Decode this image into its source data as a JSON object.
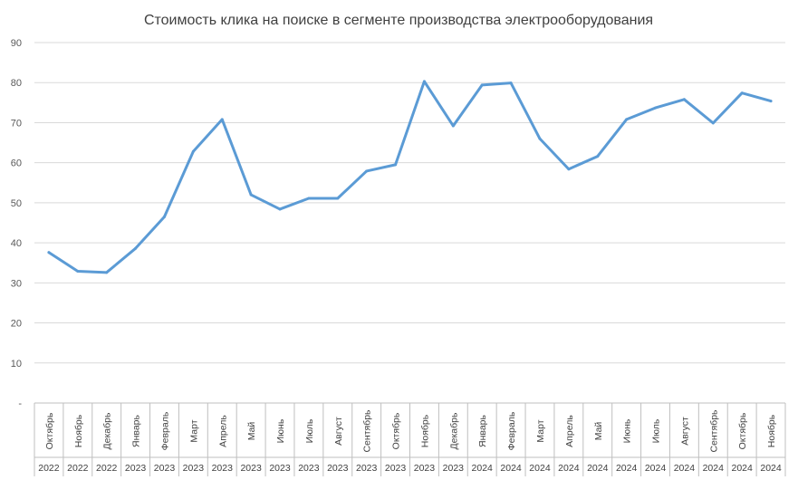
{
  "chart_data": {
    "type": "line",
    "title": "Стоимость клика на поиске  в сегменте производства электрооборудования",
    "xlabel": "",
    "ylabel": "",
    "ylim": [
      0,
      90
    ],
    "yticks": [
      "-",
      "10",
      "20",
      "30",
      "40",
      "50",
      "60",
      "70",
      "80",
      "90"
    ],
    "grid": true,
    "legend": "none",
    "colors": {
      "line": "#5b9bd5",
      "grid": "#d9d9d9",
      "text": "#595959"
    },
    "categories": [
      {
        "month": "Октябрь",
        "year": "2022"
      },
      {
        "month": "Ноябрь",
        "year": "2022"
      },
      {
        "month": "Декабрь",
        "year": "2022"
      },
      {
        "month": "Январь",
        "year": "2023"
      },
      {
        "month": "Февраль",
        "year": "2023"
      },
      {
        "month": "Март",
        "year": "2023"
      },
      {
        "month": "Апрель",
        "year": "2023"
      },
      {
        "month": "Май",
        "year": "2023"
      },
      {
        "month": "Июнь",
        "year": "2023"
      },
      {
        "month": "Июль",
        "year": "2023"
      },
      {
        "month": "Август",
        "year": "2023"
      },
      {
        "month": "Сентябрь",
        "year": "2023"
      },
      {
        "month": "Октябрь",
        "year": "2023"
      },
      {
        "month": "Ноябрь",
        "year": "2023"
      },
      {
        "month": "Декабрь",
        "year": "2023"
      },
      {
        "month": "Январь",
        "year": "2024"
      },
      {
        "month": "Февраль",
        "year": "2024"
      },
      {
        "month": "Март",
        "year": "2024"
      },
      {
        "month": "Апрель",
        "year": "2024"
      },
      {
        "month": "Май",
        "year": "2024"
      },
      {
        "month": "Июнь",
        "year": "2024"
      },
      {
        "month": "Июль",
        "year": "2024"
      },
      {
        "month": "Август",
        "year": "2024"
      },
      {
        "month": "Сентябрь",
        "year": "2024"
      },
      {
        "month": "Октябрь",
        "year": "2024"
      },
      {
        "month": "Ноябрь",
        "year": "2024"
      }
    ],
    "series": [
      {
        "values": [
          37.6,
          32.9,
          32.6,
          38.6,
          46.5,
          62.8,
          70.8,
          52.0,
          48.4,
          51.1,
          51.1,
          57.9,
          59.5,
          80.3,
          69.2,
          79.4,
          79.9,
          66.0,
          58.4,
          61.6,
          70.8,
          73.7,
          75.8,
          69.9,
          77.4,
          75.4
        ]
      }
    ]
  }
}
